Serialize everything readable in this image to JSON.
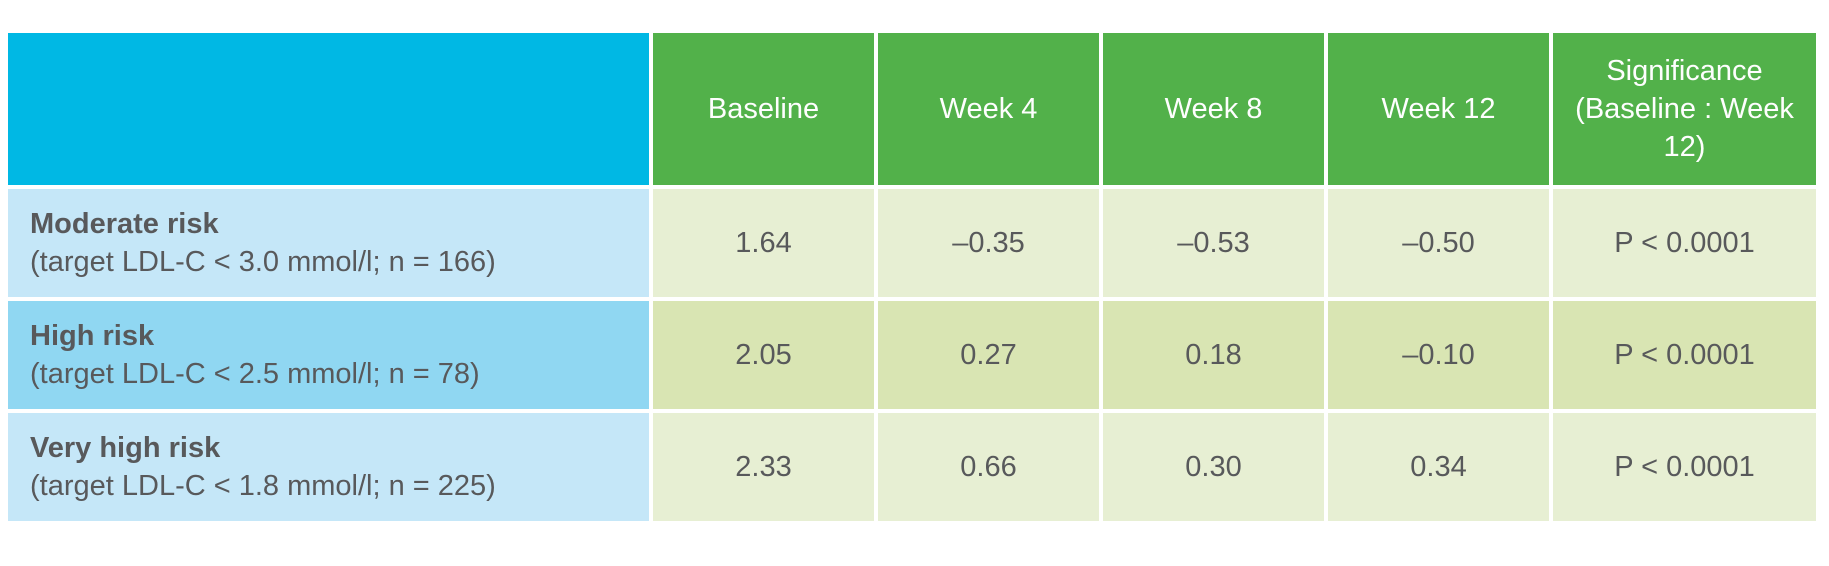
{
  "chart_data": {
    "type": "table",
    "title": "",
    "columns": [
      "",
      "Baseline",
      "Week 4",
      "Week 8",
      "Week 12",
      "Significance (Baseline : Week 12)"
    ],
    "rows": [
      {
        "label": "Moderate risk",
        "sublabel": "(target LDL-C < 3.0 mmol/l; n = 166)",
        "values": [
          "1.64",
          "–0.35",
          "–0.53",
          "–0.50",
          "P < 0.0001"
        ],
        "numeric": [
          1.64,
          -0.35,
          -0.53,
          -0.5
        ],
        "significance": "P < 0.0001"
      },
      {
        "label": "High risk",
        "sublabel": "(target LDL-C < 2.5 mmol/l; n = 78)",
        "values": [
          "2.05",
          "0.27",
          "0.18",
          "–0.10",
          "P < 0.0001"
        ],
        "numeric": [
          2.05,
          0.27,
          0.18,
          -0.1
        ],
        "significance": "P < 0.0001"
      },
      {
        "label": "Very high risk",
        "sublabel": "(target LDL-C < 1.8 mmol/l; n = 225)",
        "values": [
          "2.33",
          "0.66",
          "0.30",
          "0.34",
          "P < 0.0001"
        ],
        "numeric": [
          2.33,
          0.66,
          0.3,
          0.34
        ],
        "significance": "P < 0.0001"
      }
    ],
    "layout_hints": {
      "header_row_color": "#52b14a",
      "corner_cell_color": "#00b8e4",
      "row_label_colors_alternating": [
        "#c5e7f8",
        "#90d7f2"
      ],
      "data_cell_colors_alternating": [
        "#e7efd3",
        "#d9e5b3"
      ],
      "grid_line_color": "#ffffff",
      "header_text_color": "#fefefe",
      "body_text_color": "#58595b"
    }
  }
}
